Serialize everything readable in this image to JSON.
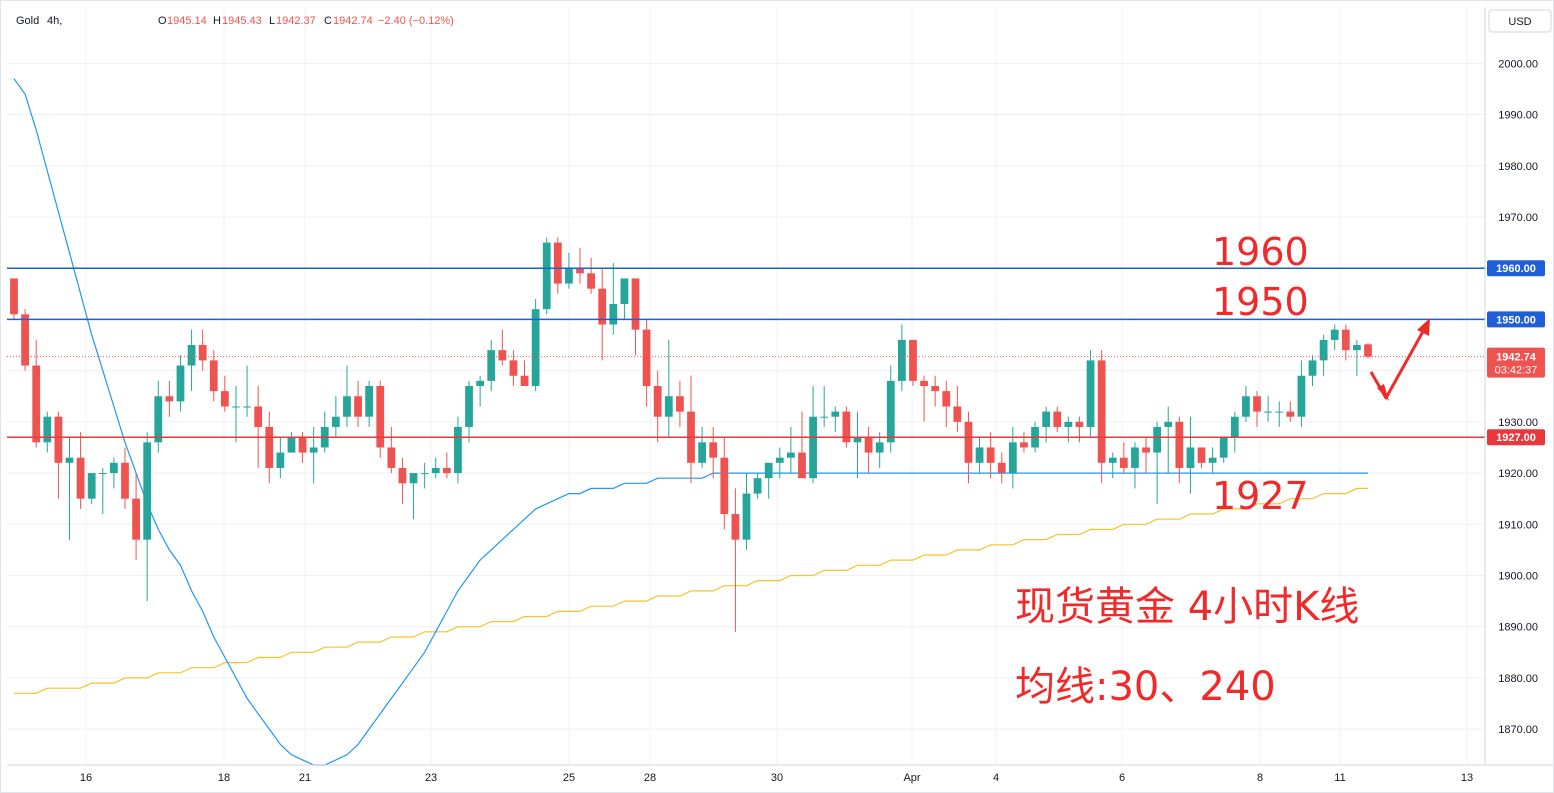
{
  "header": {
    "symbol": "Gold",
    "interval": "4h,",
    "open_label": "O",
    "open": "1945.14",
    "high_label": "H",
    "high": "1945.43",
    "low_label": "L",
    "low": "1942.37",
    "close_label": "C",
    "close": "1942.74",
    "change": "−2.40 (−0.12%)"
  },
  "currency_button": "USD",
  "colors": {
    "up": "#26a69a",
    "down": "#ef5350",
    "ma30": "#2196f3",
    "ma240": "#f5c22e",
    "resistance": "#1e5fd8",
    "support": "#e8383d",
    "annotation": "#f02a2a",
    "grid": "#eef0f3"
  },
  "chart_data": {
    "type": "candlestick",
    "y_range": [
      1863,
      2011
    ],
    "y_ticks": [
      "2000.00",
      "1990.00",
      "1980.00",
      "1970.00",
      "1960.00",
      "1950.00",
      "1940.00",
      "1930.00",
      "1920.00",
      "1910.00",
      "1900.00",
      "1890.00",
      "1880.00",
      "1870.00"
    ],
    "x_ticks": [
      "16",
      "18",
      "21",
      "23",
      "25",
      "28",
      "30",
      "Apr",
      "4",
      "6",
      "8",
      "11",
      "13"
    ],
    "candles": [
      [
        1958,
        1958,
        1950,
        1951
      ],
      [
        1951,
        1952,
        1940,
        1941
      ],
      [
        1941,
        1946,
        1925,
        1926
      ],
      [
        1926,
        1932,
        1924,
        1931
      ],
      [
        1931,
        1932,
        1915,
        1922
      ],
      [
        1922,
        1927,
        1907,
        1923
      ],
      [
        1923,
        1928,
        1913,
        1915
      ],
      [
        1915,
        1920,
        1914,
        1920
      ],
      [
        1920,
        1921,
        1912,
        1920
      ],
      [
        1920,
        1923,
        1917,
        1922
      ],
      [
        1922,
        1925,
        1913,
        1915
      ],
      [
        1915,
        1920,
        1903,
        1907
      ],
      [
        1907,
        1928,
        1895,
        1926
      ],
      [
        1926,
        1938,
        1924,
        1935
      ],
      [
        1935,
        1938,
        1931,
        1934
      ],
      [
        1934,
        1943,
        1932,
        1941
      ],
      [
        1941,
        1948,
        1936,
        1945
      ],
      [
        1945,
        1948,
        1940,
        1942
      ],
      [
        1942,
        1944,
        1934,
        1936
      ],
      [
        1936,
        1939,
        1932,
        1933
      ],
      [
        1933,
        1937,
        1926,
        1933
      ],
      [
        1933,
        1941,
        1931,
        1933
      ],
      [
        1933,
        1937,
        1921,
        1929
      ],
      [
        1929,
        1932,
        1918,
        1921
      ],
      [
        1921,
        1927,
        1919,
        1924
      ],
      [
        1924,
        1928,
        1924,
        1927
      ],
      [
        1927,
        1928,
        1922,
        1924
      ],
      [
        1924,
        1929,
        1918,
        1925
      ],
      [
        1925,
        1932,
        1924,
        1929
      ],
      [
        1929,
        1935,
        1927,
        1931
      ],
      [
        1931,
        1941,
        1929,
        1935
      ],
      [
        1935,
        1938,
        1929,
        1931
      ],
      [
        1931,
        1938,
        1929,
        1937
      ],
      [
        1937,
        1938,
        1923,
        1925
      ],
      [
        1925,
        1929,
        1920,
        1921
      ],
      [
        1921,
        1923,
        1914,
        1918
      ],
      [
        1918,
        1920,
        1911,
        1920
      ],
      [
        1920,
        1922,
        1917,
        1920
      ],
      [
        1920,
        1923,
        1919,
        1921
      ],
      [
        1921,
        1924,
        1919,
        1920
      ],
      [
        1920,
        1931,
        1918,
        1929
      ],
      [
        1929,
        1938,
        1926,
        1937
      ],
      [
        1937,
        1939,
        1933,
        1938
      ],
      [
        1938,
        1946,
        1936,
        1944
      ],
      [
        1944,
        1948,
        1941,
        1942
      ],
      [
        1942,
        1944,
        1937,
        1939
      ],
      [
        1939,
        1942,
        1937,
        1937
      ],
      [
        1937,
        1954,
        1936,
        1952
      ],
      [
        1952,
        1966,
        1951,
        1965
      ],
      [
        1965,
        1966,
        1955,
        1957
      ],
      [
        1957,
        1963,
        1956,
        1960
      ],
      [
        1960,
        1964,
        1957,
        1959
      ],
      [
        1959,
        1962,
        1955,
        1956
      ],
      [
        1956,
        1960,
        1942,
        1949
      ],
      [
        1949,
        1961,
        1947,
        1953
      ],
      [
        1953,
        1958,
        1950,
        1958
      ],
      [
        1958,
        1958,
        1943,
        1948
      ],
      [
        1948,
        1950,
        1933,
        1937
      ],
      [
        1937,
        1940,
        1926,
        1931
      ],
      [
        1931,
        1946,
        1927,
        1935
      ],
      [
        1935,
        1938,
        1929,
        1932
      ],
      [
        1932,
        1939,
        1918,
        1922
      ],
      [
        1922,
        1929,
        1921,
        1926
      ],
      [
        1926,
        1929,
        1919,
        1923
      ],
      [
        1923,
        1927,
        1909,
        1912
      ],
      [
        1912,
        1917,
        1889,
        1907
      ],
      [
        1907,
        1920,
        1905,
        1916
      ],
      [
        1916,
        1920,
        1915,
        1919
      ],
      [
        1919,
        1922,
        1915,
        1922
      ],
      [
        1922,
        1925,
        1919,
        1923
      ],
      [
        1923,
        1929,
        1920,
        1924
      ],
      [
        1924,
        1932,
        1919,
        1919
      ],
      [
        1919,
        1937,
        1918,
        1931
      ],
      [
        1931,
        1937,
        1929,
        1931
      ],
      [
        1931,
        1933,
        1928,
        1932
      ],
      [
        1932,
        1933,
        1925,
        1926
      ],
      [
        1926,
        1932,
        1919,
        1927
      ],
      [
        1927,
        1929,
        1920,
        1924
      ],
      [
        1924,
        1928,
        1921,
        1926
      ],
      [
        1926,
        1941,
        1924,
        1938
      ],
      [
        1938,
        1949,
        1936,
        1946
      ],
      [
        1946,
        1946,
        1937,
        1938
      ],
      [
        1938,
        1939,
        1930,
        1937
      ],
      [
        1937,
        1939,
        1933,
        1936
      ],
      [
        1936,
        1938,
        1929,
        1933
      ],
      [
        1933,
        1937,
        1928,
        1930
      ],
      [
        1930,
        1932,
        1918,
        1922
      ],
      [
        1922,
        1927,
        1920,
        1925
      ],
      [
        1925,
        1928,
        1919,
        1922
      ],
      [
        1922,
        1924,
        1918,
        1920
      ],
      [
        1920,
        1929,
        1917,
        1926
      ],
      [
        1926,
        1928,
        1924,
        1925
      ],
      [
        1925,
        1930,
        1924,
        1929
      ],
      [
        1929,
        1933,
        1926,
        1932
      ],
      [
        1932,
        1933,
        1928,
        1929
      ],
      [
        1929,
        1931,
        1926,
        1930
      ],
      [
        1930,
        1931,
        1926,
        1929
      ],
      [
        1929,
        1944,
        1927,
        1942
      ],
      [
        1942,
        1944,
        1918,
        1922
      ],
      [
        1922,
        1924,
        1919,
        1923
      ],
      [
        1923,
        1926,
        1920,
        1921
      ],
      [
        1921,
        1926,
        1917,
        1925
      ],
      [
        1925,
        1927,
        1920,
        1924
      ],
      [
        1924,
        1930,
        1914,
        1929
      ],
      [
        1929,
        1933,
        1920,
        1930
      ],
      [
        1930,
        1931,
        1918,
        1921
      ],
      [
        1921,
        1931,
        1916,
        1925
      ],
      [
        1925,
        1925,
        1921,
        1922
      ],
      [
        1922,
        1925,
        1920,
        1923
      ],
      [
        1923,
        1927,
        1922,
        1927
      ],
      [
        1927,
        1932,
        1924,
        1931
      ],
      [
        1931,
        1937,
        1930,
        1935
      ],
      [
        1935,
        1936,
        1929,
        1932
      ],
      [
        1932,
        1935,
        1930,
        1932
      ],
      [
        1932,
        1934,
        1929,
        1932
      ],
      [
        1932,
        1934,
        1930,
        1931
      ],
      [
        1931,
        1942,
        1929,
        1939
      ],
      [
        1939,
        1943,
        1937,
        1942
      ],
      [
        1942,
        1947,
        1939,
        1946
      ],
      [
        1946,
        1949,
        1944,
        1948
      ],
      [
        1948,
        1949,
        1942,
        1944
      ],
      [
        1944,
        1946,
        1939,
        1945
      ],
      [
        1945.14,
        1945.43,
        1942.37,
        1942.74
      ]
    ],
    "series": [
      {
        "name": "30",
        "values": [
          1997,
          1994,
          1987,
          1979,
          1971,
          1963,
          1955,
          1947,
          1940,
          1933,
          1926,
          1920,
          1914,
          1909,
          1905,
          1902,
          1897,
          1893,
          1888,
          1884,
          1880,
          1876,
          1873,
          1870,
          1867,
          1865,
          1864,
          1863,
          1863,
          1864,
          1865,
          1867,
          1870,
          1873,
          1876,
          1879,
          1882,
          1885,
          1889,
          1893,
          1897,
          1900,
          1903,
          1905,
          1907,
          1909,
          1911,
          1913,
          1914,
          1915,
          1916,
          1916,
          1917,
          1917,
          1917,
          1918,
          1918,
          1918,
          1919,
          1919,
          1919,
          1919,
          1919,
          1920,
          1920,
          1920,
          1920,
          1920,
          1920,
          1920,
          1920,
          1920,
          1920,
          1920,
          1920,
          1920,
          1920,
          1920,
          1920,
          1920,
          1920,
          1920,
          1920,
          1920,
          1920,
          1920,
          1920,
          1920,
          1920,
          1920,
          1920,
          1920,
          1920,
          1920,
          1920,
          1920,
          1920,
          1920,
          1920,
          1920,
          1920,
          1920,
          1920,
          1920,
          1920,
          1920,
          1920,
          1920,
          1920,
          1920,
          1920,
          1920,
          1920,
          1920,
          1920,
          1920,
          1920,
          1920,
          1920,
          1920,
          1920,
          1920,
          1920
        ]
      },
      {
        "name": "240",
        "values": [
          1877,
          1877,
          1877,
          1878,
          1878,
          1878,
          1878,
          1879,
          1879,
          1879,
          1880,
          1880,
          1880,
          1881,
          1881,
          1881,
          1882,
          1882,
          1882,
          1883,
          1883,
          1883,
          1884,
          1884,
          1884,
          1885,
          1885,
          1885,
          1886,
          1886,
          1886,
          1887,
          1887,
          1887,
          1888,
          1888,
          1888,
          1889,
          1889,
          1889,
          1890,
          1890,
          1890,
          1891,
          1891,
          1891,
          1892,
          1892,
          1892,
          1893,
          1893,
          1893,
          1894,
          1894,
          1894,
          1895,
          1895,
          1895,
          1896,
          1896,
          1896,
          1897,
          1897,
          1897,
          1898,
          1898,
          1898,
          1899,
          1899,
          1899,
          1900,
          1900,
          1900,
          1901,
          1901,
          1901,
          1902,
          1902,
          1902,
          1903,
          1903,
          1903,
          1904,
          1904,
          1904,
          1905,
          1905,
          1905,
          1906,
          1906,
          1906,
          1907,
          1907,
          1907,
          1908,
          1908,
          1908,
          1909,
          1909,
          1909,
          1910,
          1910,
          1910,
          1911,
          1911,
          1911,
          1912,
          1912,
          1912,
          1913,
          1913,
          1913,
          1914,
          1914,
          1914,
          1915,
          1915,
          1915,
          1916,
          1916,
          1916,
          1917,
          1917
        ]
      }
    ],
    "horizontal_lines": [
      {
        "value": 1960,
        "tag": "1960.00",
        "label": "1960",
        "color": "#1e5fd8"
      },
      {
        "value": 1950,
        "tag": "1950.00",
        "label": "1950",
        "color": "#1e5fd8"
      },
      {
        "value": 1927,
        "tag": "1927.00",
        "label": "1927",
        "color": "#e8383d"
      }
    ],
    "last_price": {
      "value": 1942.74,
      "tag": "1942.74",
      "countdown": "03:42:37"
    }
  },
  "annotation": {
    "title": "现货黄金 4小时K线",
    "subtitle": "均线:30、240"
  }
}
